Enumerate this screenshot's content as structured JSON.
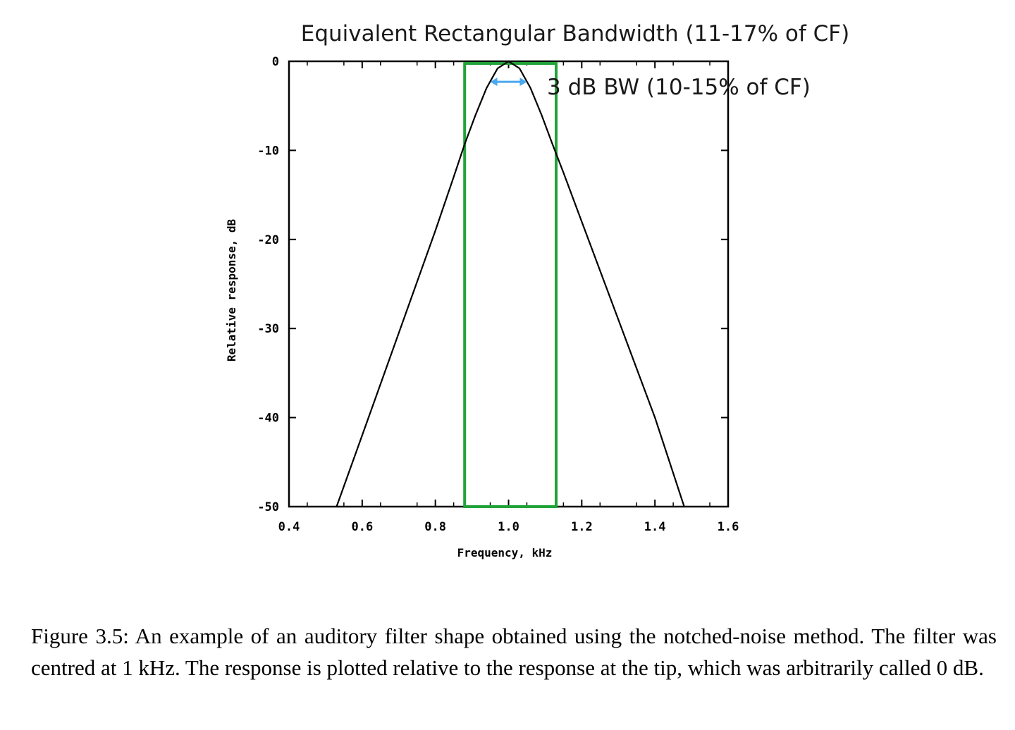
{
  "chart_data": {
    "type": "line",
    "title": "Equivalent Rectangular Bandwidth (11-17% of CF)",
    "xlabel": "Frequency, kHz",
    "ylabel": "Relative response, dB",
    "xlim": [
      0.4,
      1.6
    ],
    "ylim": [
      -50,
      0
    ],
    "xticks": [
      "0.4",
      "0.6",
      "0.8",
      "1.0",
      "1.2",
      "1.4",
      "1.6"
    ],
    "yticks": [
      "0",
      "-10",
      "-20",
      "-30",
      "-40",
      "-50"
    ],
    "grid": false,
    "series": [
      {
        "x": [
          0.53,
          0.6,
          0.7,
          0.8,
          0.85,
          0.88,
          0.91,
          0.94,
          0.97,
          1.0,
          1.03,
          1.06,
          1.09,
          1.12,
          1.15,
          1.2,
          1.3,
          1.4,
          1.48
        ],
        "y": [
          -50,
          -42,
          -30.5,
          -19,
          -13,
          -9.3,
          -6,
          -3,
          -0.8,
          0,
          -0.8,
          -3,
          -6,
          -9.3,
          -12.5,
          -18,
          -29,
          -40,
          -50
        ]
      }
    ],
    "erb_box": {
      "x_start": 0.88,
      "x_end": 1.13,
      "y_bottom": -50,
      "y_top": 0,
      "color": "#22a33a"
    },
    "three_db_bw": {
      "x_start": 0.95,
      "x_end": 1.05,
      "y": -2.3,
      "color": "#4aa8f0",
      "label": "3 dB BW (10-15% of CF)"
    }
  },
  "caption": "Figure 3.5: An example of an auditory filter shape obtained using the notched-noise method. The filter was centred at 1 kHz. The response is plotted relative to the response at the tip, which was arbitrarily called 0 dB."
}
